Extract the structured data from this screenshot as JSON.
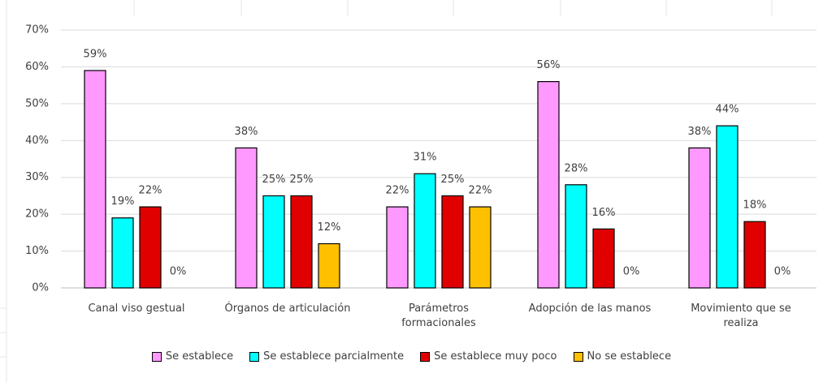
{
  "chart_data": {
    "type": "bar",
    "categories": [
      "Canal viso gestual",
      "Órganos de articulación",
      "Parámetros formacionales",
      "Adopción de las manos",
      "Movimiento que se realiza"
    ],
    "series": [
      {
        "name": "Se establece",
        "color": "#ff99ff",
        "values": [
          59,
          38,
          22,
          56,
          38
        ],
        "value_labels": [
          "59%",
          "38%",
          "22%",
          "56%",
          "38%"
        ]
      },
      {
        "name": "Se establece parcialmente",
        "color": "#00ffff",
        "values": [
          19,
          25,
          31,
          28,
          44
        ],
        "value_labels": [
          "19%",
          "25%",
          "31%",
          "28%",
          "44%"
        ]
      },
      {
        "name": "Se establece muy poco",
        "color": "#e00000",
        "values": [
          22,
          25,
          25,
          16,
          18
        ],
        "value_labels": [
          "22%",
          "25%",
          "25%",
          "16%",
          "18%"
        ]
      },
      {
        "name": "No se establece",
        "color": "#ffc000",
        "values": [
          0,
          12,
          22,
          0,
          0
        ],
        "value_labels": [
          "0%",
          "12%",
          "22%",
          "0%",
          "0%"
        ]
      }
    ],
    "ylim": [
      0,
      70
    ],
    "yticks": [
      {
        "value": 0,
        "label": "0%"
      },
      {
        "value": 10,
        "label": "10%"
      },
      {
        "value": 20,
        "label": "20%"
      },
      {
        "value": 30,
        "label": "30%"
      },
      {
        "value": 40,
        "label": "40%"
      },
      {
        "value": 50,
        "label": "50%"
      },
      {
        "value": 60,
        "label": "60%"
      },
      {
        "value": 70,
        "label": "70%"
      }
    ],
    "grid": true,
    "legend": "bottom"
  }
}
